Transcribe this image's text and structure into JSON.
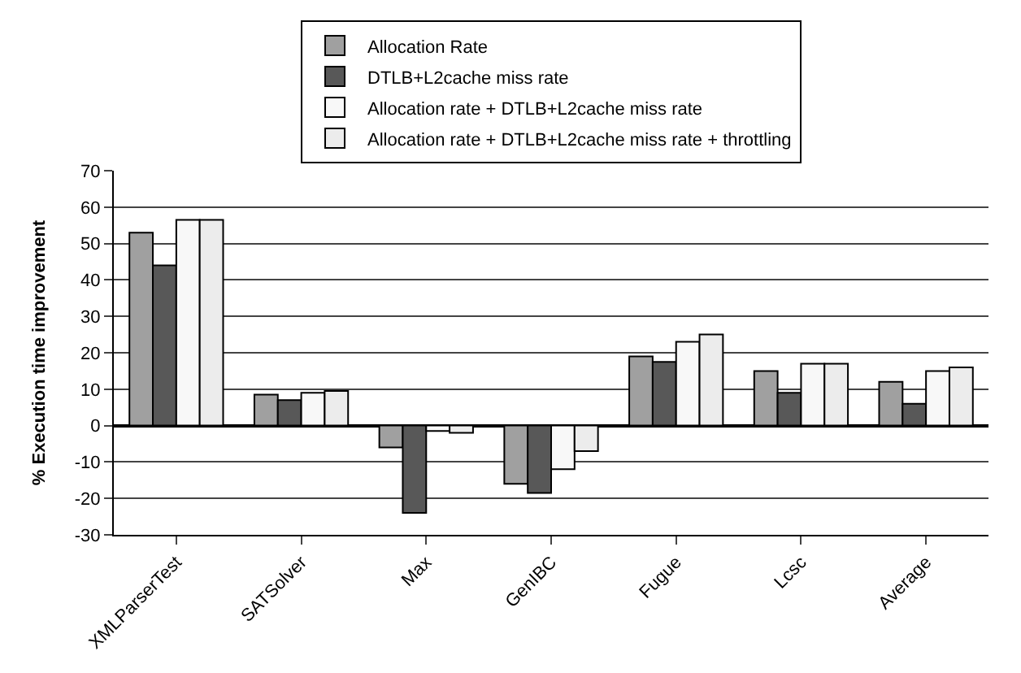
{
  "chart_data": {
    "type": "bar",
    "ylabel": "% Execution time improvement",
    "categories": [
      "XMLParserTest",
      "SATSolver",
      "Max",
      "GenIBC",
      "Fugue",
      "Lcsc",
      "Average"
    ],
    "series": [
      {
        "name": "Allocation Rate",
        "color": "#a0a0a0",
        "values": [
          53,
          8.5,
          -6,
          -16,
          19,
          15,
          12
        ]
      },
      {
        "name": "DTLB+L2cache miss rate",
        "color": "#585858",
        "values": [
          44,
          7,
          -24,
          -18.5,
          17.5,
          9,
          6
        ]
      },
      {
        "name": "Allocation rate + DTLB+L2cache miss rate",
        "color": "#f8f8f8",
        "values": [
          56.5,
          9,
          -1.5,
          -12,
          23,
          17,
          15
        ]
      },
      {
        "name": "Allocation rate + DTLB+L2cache miss rate + throttling",
        "color": "#ececec",
        "values": [
          56.5,
          9.5,
          -2,
          -7,
          25,
          17,
          16
        ]
      }
    ],
    "ylim": [
      -30,
      70
    ],
    "yticks": [
      -30,
      -20,
      -10,
      0,
      10,
      20,
      30,
      40,
      50,
      60,
      70
    ],
    "grid": "y",
    "legend": "top"
  }
}
